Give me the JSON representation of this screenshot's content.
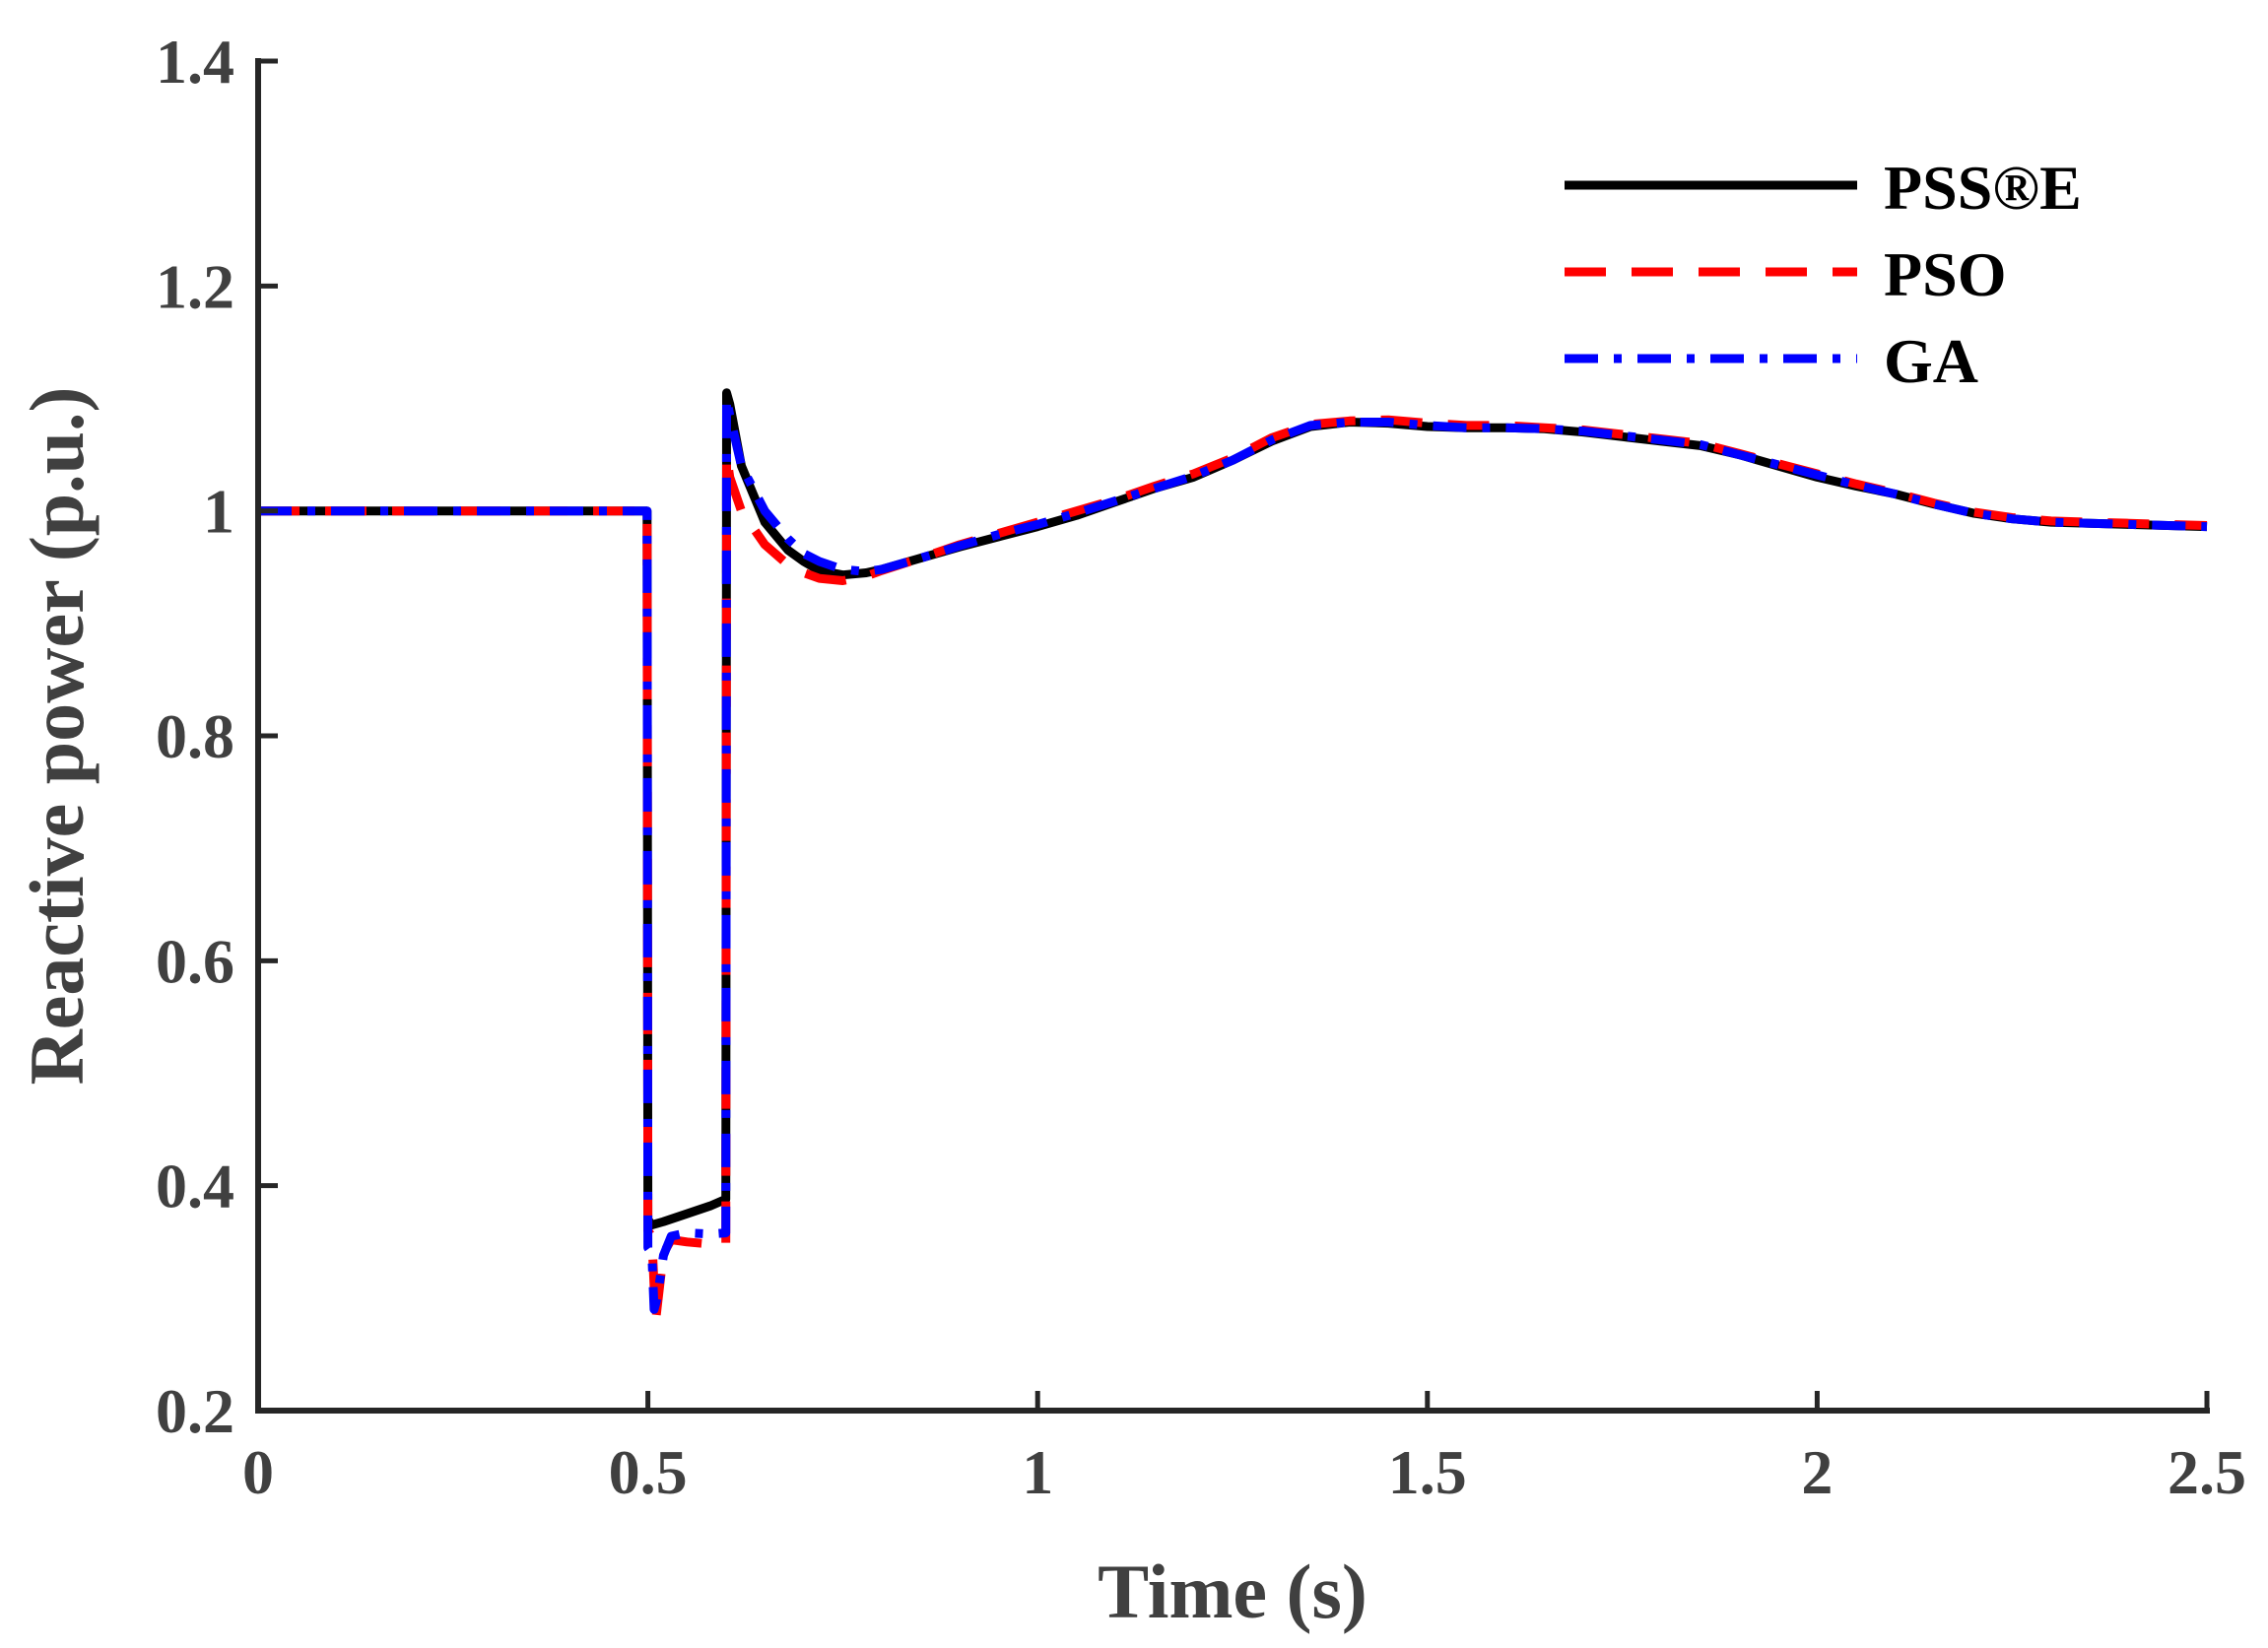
{
  "chart_data": {
    "type": "line",
    "title": "",
    "xlabel": "Time (s)",
    "ylabel": "Reactive power (p.u.)",
    "xlim": [
      0,
      2.5
    ],
    "ylim": [
      0.2,
      1.4
    ],
    "xticks": [
      0,
      0.5,
      1,
      1.5,
      2,
      2.5
    ],
    "xtick_labels": [
      "0",
      "0.5",
      "1",
      "1.5",
      "2",
      "2.5"
    ],
    "yticks": [
      0.2,
      0.4,
      0.6,
      0.8,
      1.0,
      1.2,
      1.4
    ],
    "ytick_labels": [
      "0.2",
      "0.4",
      "0.6",
      "0.8",
      "1",
      "1.2",
      "1.4"
    ],
    "grid": false,
    "legend_position": "top-right",
    "series": [
      {
        "name": "PSS®E",
        "color": "#000000",
        "style": "solid",
        "x": [
          0,
          0.499,
          0.5,
          0.505,
          0.52,
          0.55,
          0.58,
          0.6,
          0.601,
          0.605,
          0.62,
          0.65,
          0.68,
          0.7,
          0.72,
          0.75,
          0.78,
          0.8,
          0.85,
          0.9,
          0.95,
          1.0,
          1.05,
          1.1,
          1.15,
          1.2,
          1.25,
          1.3,
          1.35,
          1.4,
          1.45,
          1.5,
          1.55,
          1.6,
          1.65,
          1.7,
          1.75,
          1.8,
          1.85,
          1.9,
          1.95,
          2.0,
          2.05,
          2.1,
          2.15,
          2.2,
          2.25,
          2.3,
          2.35,
          2.4,
          2.45,
          2.5
        ],
        "y": [
          1.0,
          1.0,
          0.37,
          0.365,
          0.368,
          0.375,
          0.382,
          0.388,
          1.105,
          1.095,
          1.04,
          0.99,
          0.965,
          0.955,
          0.947,
          0.943,
          0.945,
          0.948,
          0.958,
          0.968,
          0.977,
          0.986,
          0.996,
          1.008,
          1.02,
          1.03,
          1.045,
          1.062,
          1.075,
          1.079,
          1.078,
          1.075,
          1.074,
          1.074,
          1.073,
          1.07,
          1.066,
          1.062,
          1.058,
          1.05,
          1.04,
          1.03,
          1.022,
          1.015,
          1.006,
          0.998,
          0.993,
          0.99,
          0.989,
          0.988,
          0.987,
          0.986
        ]
      },
      {
        "name": "PSO",
        "color": "#ff0000",
        "style": "dashed",
        "x": [
          0,
          0.499,
          0.5,
          0.505,
          0.51,
          0.52,
          0.53,
          0.55,
          0.58,
          0.6,
          0.601,
          0.605,
          0.62,
          0.65,
          0.68,
          0.7,
          0.72,
          0.75,
          0.78,
          0.8,
          0.85,
          0.9,
          0.95,
          1.0,
          1.05,
          1.1,
          1.15,
          1.2,
          1.25,
          1.3,
          1.35,
          1.4,
          1.45,
          1.5,
          1.55,
          1.6,
          1.65,
          1.7,
          1.75,
          1.8,
          1.85,
          1.9,
          1.95,
          2.0,
          2.05,
          2.1,
          2.15,
          2.2,
          2.25,
          2.3,
          2.35,
          2.4,
          2.45,
          2.5
        ],
        "y": [
          1.0,
          1.0,
          0.36,
          0.355,
          0.28,
          0.34,
          0.352,
          0.35,
          0.348,
          0.348,
          1.05,
          1.03,
          1.0,
          0.97,
          0.952,
          0.945,
          0.94,
          0.938,
          0.942,
          0.947,
          0.958,
          0.97,
          0.98,
          0.99,
          1.0,
          1.01,
          1.022,
          1.033,
          1.047,
          1.065,
          1.077,
          1.08,
          1.081,
          1.078,
          1.076,
          1.076,
          1.074,
          1.072,
          1.068,
          1.064,
          1.06,
          1.051,
          1.042,
          1.033,
          1.024,
          1.016,
          1.007,
          0.999,
          0.994,
          0.991,
          0.99,
          0.989,
          0.988,
          0.987
        ]
      },
      {
        "name": "GA",
        "color": "#0000ff",
        "style": "dashdot",
        "x": [
          0,
          0.499,
          0.5,
          0.505,
          0.508,
          0.512,
          0.52,
          0.53,
          0.55,
          0.58,
          0.6,
          0.601,
          0.605,
          0.62,
          0.65,
          0.68,
          0.7,
          0.72,
          0.75,
          0.78,
          0.8,
          0.85,
          0.9,
          0.95,
          1.0,
          1.05,
          1.1,
          1.15,
          1.2,
          1.25,
          1.3,
          1.35,
          1.4,
          1.45,
          1.5,
          1.55,
          1.6,
          1.65,
          1.7,
          1.75,
          1.8,
          1.85,
          1.9,
          1.95,
          2.0,
          2.05,
          2.1,
          2.15,
          2.2,
          2.25,
          2.3,
          2.35,
          2.4,
          2.45,
          2.5
        ],
        "y": [
          1.0,
          1.0,
          0.345,
          0.34,
          0.29,
          0.3,
          0.338,
          0.355,
          0.358,
          0.357,
          0.358,
          1.1,
          1.085,
          1.04,
          1.0,
          0.975,
          0.962,
          0.955,
          0.948,
          0.946,
          0.948,
          0.958,
          0.969,
          0.979,
          0.988,
          0.998,
          1.009,
          1.02,
          1.031,
          1.045,
          1.063,
          1.076,
          1.079,
          1.079,
          1.076,
          1.074,
          1.074,
          1.073,
          1.071,
          1.067,
          1.063,
          1.059,
          1.05,
          1.041,
          1.032,
          1.023,
          1.015,
          1.006,
          0.998,
          0.993,
          0.99,
          0.989,
          0.988,
          0.987,
          0.986
        ]
      }
    ]
  }
}
